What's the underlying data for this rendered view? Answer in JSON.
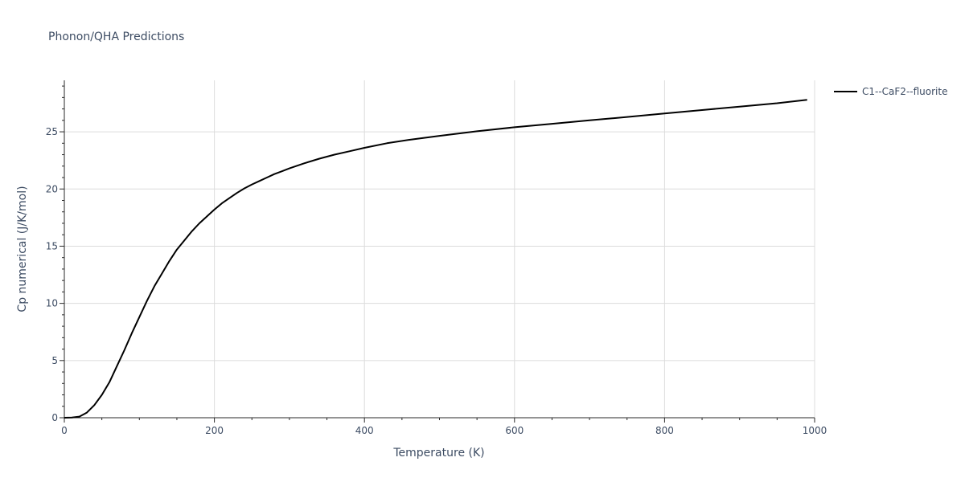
{
  "chart_data": {
    "type": "line",
    "title": "Phonon/QHA Predictions",
    "xlabel": "Temperature (K)",
    "ylabel": "Cp numerical (J/K/mol)",
    "xlim": [
      0,
      1000
    ],
    "ylim": [
      0,
      29.5
    ],
    "x_ticks": [
      0,
      200,
      400,
      600,
      800,
      1000
    ],
    "y_ticks": [
      0,
      5,
      10,
      15,
      20,
      25
    ],
    "grid": true,
    "legend_position": "top-right",
    "series": [
      {
        "name": "C1--CaF2--fluorite",
        "color": "#000000",
        "x": [
          0,
          10,
          20,
          30,
          40,
          50,
          60,
          70,
          80,
          90,
          100,
          110,
          120,
          130,
          140,
          150,
          160,
          170,
          180,
          190,
          200,
          210,
          220,
          230,
          240,
          250,
          260,
          270,
          280,
          290,
          300,
          320,
          340,
          360,
          380,
          400,
          430,
          460,
          500,
          550,
          600,
          650,
          700,
          750,
          800,
          850,
          900,
          950,
          990
        ],
        "y": [
          0,
          0.02,
          0.1,
          0.45,
          1.1,
          2.0,
          3.1,
          4.5,
          5.9,
          7.4,
          8.8,
          10.2,
          11.5,
          12.6,
          13.7,
          14.7,
          15.5,
          16.3,
          17.0,
          17.6,
          18.2,
          18.75,
          19.2,
          19.65,
          20.05,
          20.4,
          20.7,
          21.0,
          21.3,
          21.55,
          21.8,
          22.25,
          22.65,
          23.0,
          23.3,
          23.6,
          24.0,
          24.3,
          24.65,
          25.05,
          25.4,
          25.7,
          26.0,
          26.3,
          26.6,
          26.9,
          27.2,
          27.5,
          27.8
        ]
      }
    ]
  }
}
